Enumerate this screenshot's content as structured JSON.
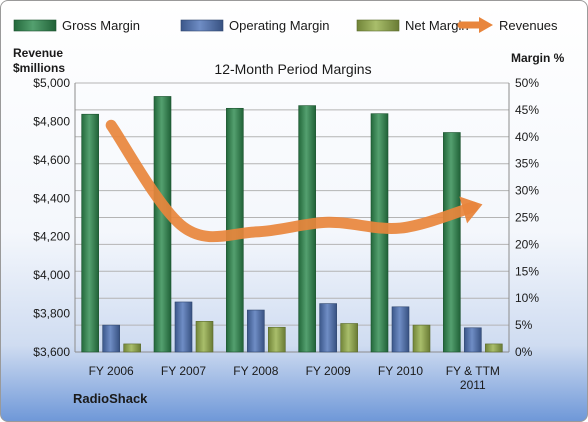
{
  "chart_data": {
    "type": "bar",
    "title": "12-Month Period Margins",
    "company": "RadioShack",
    "y_left_label": [
      "Revenue",
      "$millions"
    ],
    "y_right_label": "Margin %",
    "categories": [
      [
        "FY 2006"
      ],
      [
        "FY 2007"
      ],
      [
        "FY 2008"
      ],
      [
        "FY 2009"
      ],
      [
        "FY 2010"
      ],
      [
        "FY & TTM",
        "2011"
      ]
    ],
    "y_left_ticks": [
      "$3,600",
      "$3,800",
      "$4,000",
      "$4,200",
      "$4,400",
      "$4,600",
      "$4,800",
      "$5,000"
    ],
    "y_left_range": [
      3600,
      5000
    ],
    "y_right_ticks": [
      "0%",
      "5%",
      "10%",
      "15%",
      "20%",
      "25%",
      "30%",
      "35%",
      "40%",
      "45%",
      "50%"
    ],
    "y_right_range": [
      0,
      50
    ],
    "grid": true,
    "legend_position": "top",
    "series": [
      {
        "name": "Gross Margin",
        "axis": "right",
        "kind": "bar",
        "color": "#2e8b4f",
        "values": [
          44.2,
          47.5,
          45.3,
          45.8,
          44.3,
          40.8
        ]
      },
      {
        "name": "Operating Margin",
        "axis": "right",
        "kind": "bar",
        "color": "#4f74b8",
        "values": [
          5.0,
          9.3,
          7.8,
          9.0,
          8.4,
          4.5
        ]
      },
      {
        "name": "Net Margin",
        "axis": "right",
        "kind": "bar",
        "color": "#96b04a",
        "values": [
          1.5,
          5.7,
          4.6,
          5.3,
          5.0,
          1.5
        ]
      },
      {
        "name": "Revenues",
        "axis": "left",
        "kind": "line",
        "color": "#e8853c",
        "values": [
          4780,
          4250,
          4225,
          4275,
          4245,
          4354
        ]
      }
    ]
  }
}
